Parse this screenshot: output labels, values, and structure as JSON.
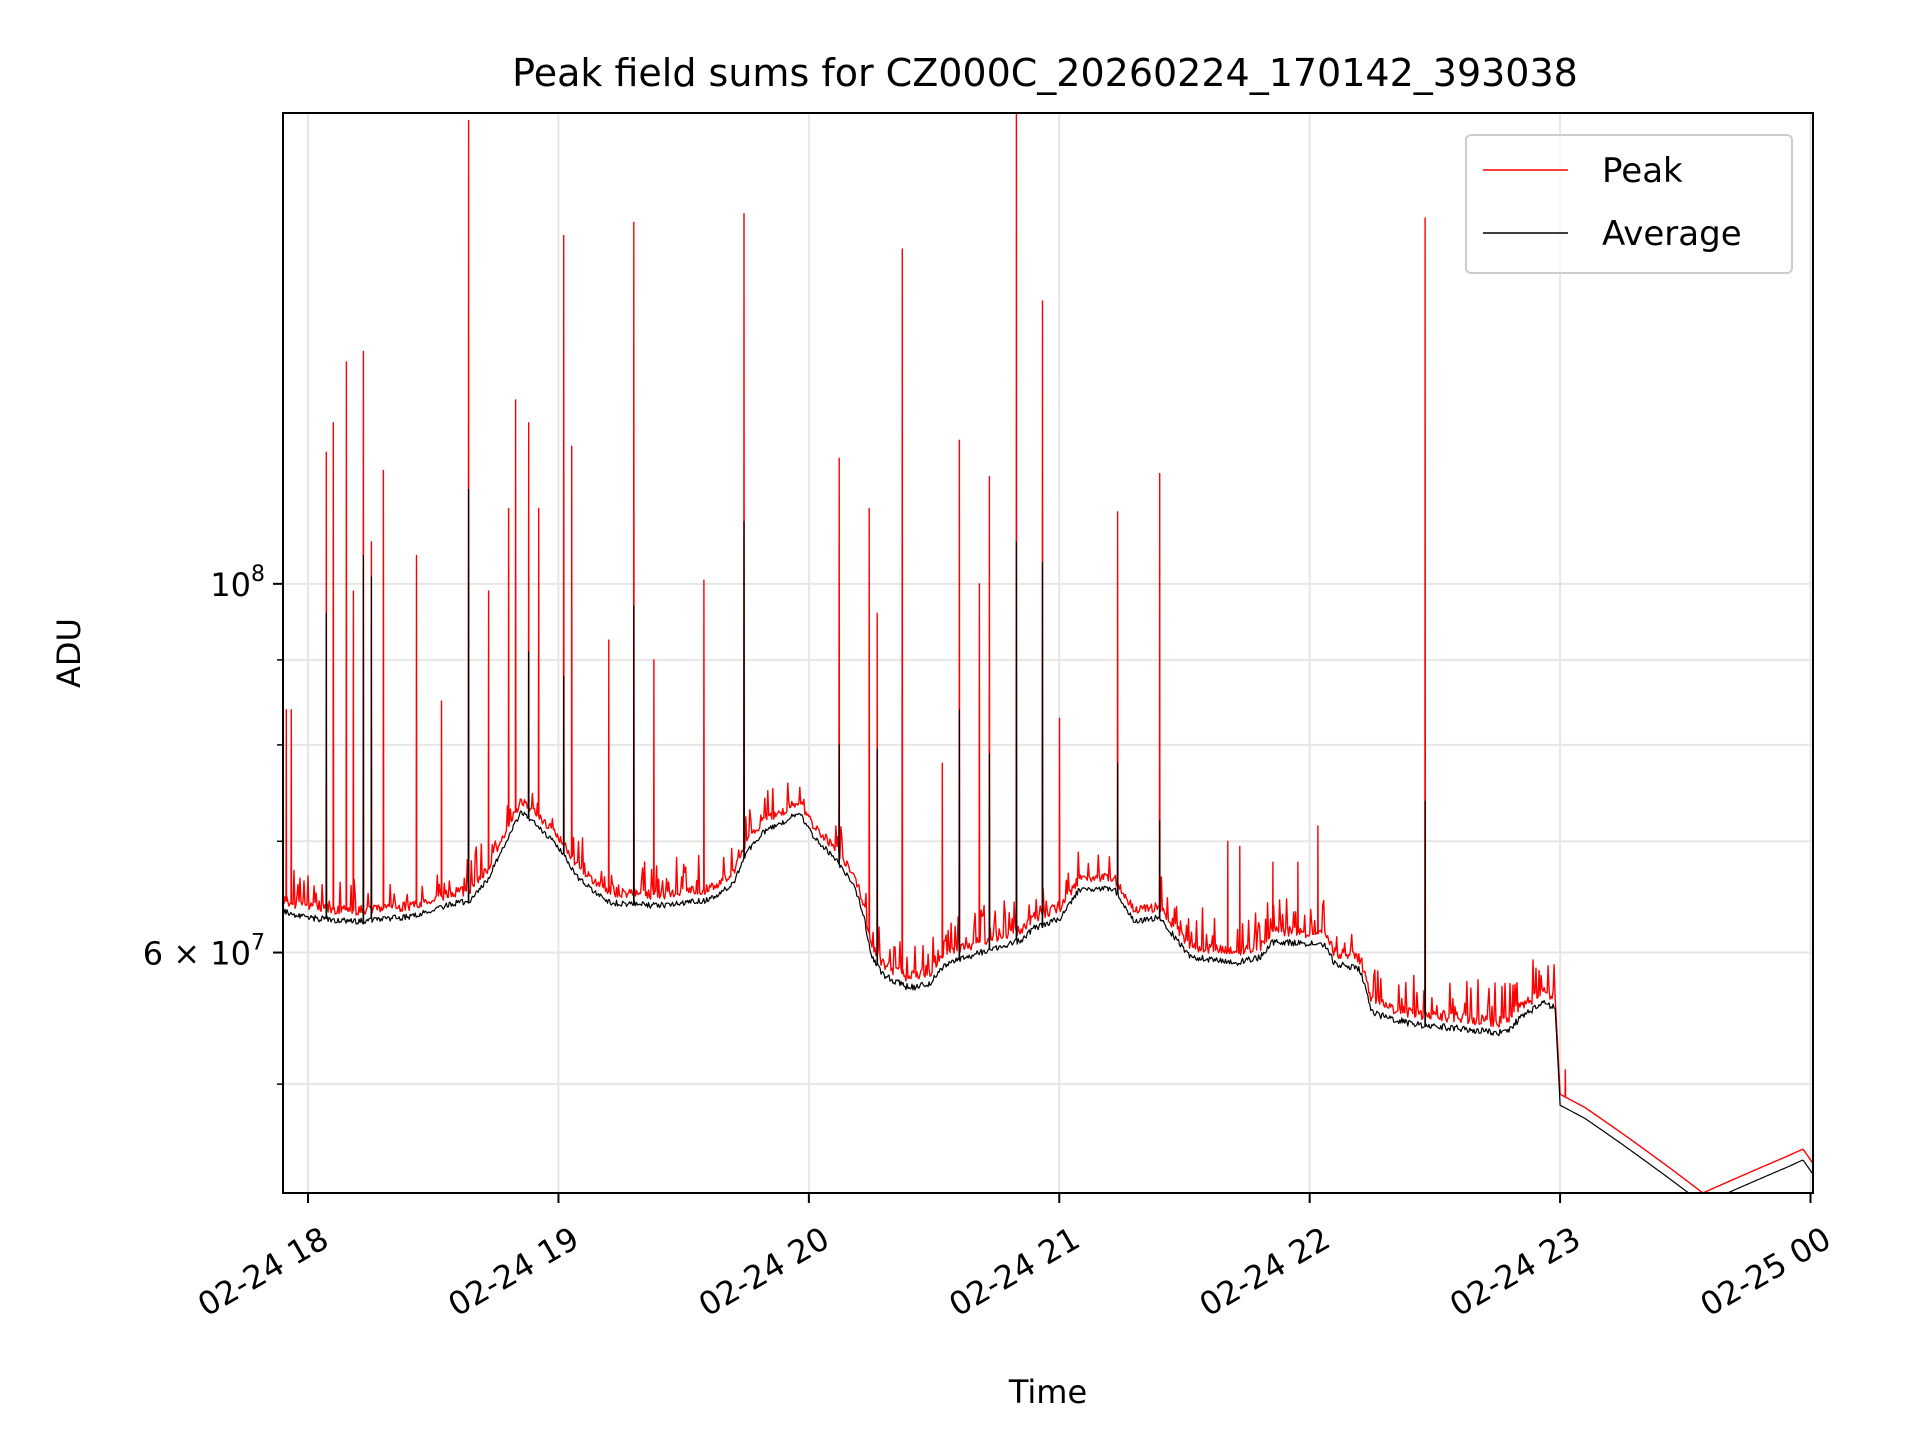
{
  "chart_data": {
    "type": "line",
    "title": "Peak field sums for CZ000C_20260224_170142_393038",
    "xlabel": "Time",
    "ylabel": "ADU",
    "yscale": "log",
    "xlim_hours": [
      17.9,
      24.01
    ],
    "ylim": [
      43000000,
      192000000
    ],
    "grid": true,
    "legend_position": "top-right",
    "x_ticks": [
      {
        "hour": 18,
        "label": "02-24 18"
      },
      {
        "hour": 19,
        "label": "02-24 19"
      },
      {
        "hour": 20,
        "label": "02-24 20"
      },
      {
        "hour": 21,
        "label": "02-24 21"
      },
      {
        "hour": 22,
        "label": "02-24 22"
      },
      {
        "hour": 23,
        "label": "02-24 23"
      },
      {
        "hour": 24,
        "label": "02-25 00"
      }
    ],
    "y_ticks": [
      {
        "value": 100000000,
        "base": "10",
        "exp": "8",
        "mant": ""
      },
      {
        "value": 60000000,
        "base": "10",
        "exp": "7",
        "mant": "6 × "
      }
    ],
    "y_minor_ticks": [
      50000000,
      70000000,
      80000000,
      90000000
    ],
    "series": [
      {
        "name": "Peak",
        "color": "#ff0000",
        "baseline": [
          [
            17.9,
            64.5
          ],
          [
            18.0,
            63.9
          ],
          [
            18.2,
            63.6
          ],
          [
            18.4,
            64.0
          ],
          [
            18.55,
            65.0
          ],
          [
            18.65,
            65.5
          ],
          [
            18.72,
            67.5
          ],
          [
            18.8,
            71.5
          ],
          [
            18.85,
            74.0
          ],
          [
            18.9,
            73.0
          ],
          [
            19.0,
            70.5
          ],
          [
            19.08,
            67.5
          ],
          [
            19.2,
            65.3
          ],
          [
            19.4,
            65.0
          ],
          [
            19.6,
            65.5
          ],
          [
            19.7,
            67.0
          ],
          [
            19.75,
            70.0
          ],
          [
            19.82,
            72.0
          ],
          [
            19.9,
            73.0
          ],
          [
            19.96,
            74.0
          ],
          [
            20.02,
            71.5
          ],
          [
            20.1,
            69.5
          ],
          [
            20.18,
            67.0
          ],
          [
            20.22,
            64.0
          ],
          [
            20.25,
            60.5
          ],
          [
            20.3,
            59.0
          ],
          [
            20.4,
            58.0
          ],
          [
            20.48,
            58.3
          ],
          [
            20.55,
            60.0
          ],
          [
            20.7,
            61.0
          ],
          [
            20.85,
            62.0
          ],
          [
            20.9,
            63.0
          ],
          [
            21.0,
            63.8
          ],
          [
            21.08,
            66.5
          ],
          [
            21.22,
            66.5
          ],
          [
            21.3,
            63.5
          ],
          [
            21.4,
            64.0
          ],
          [
            21.45,
            62.5
          ],
          [
            21.52,
            60.6
          ],
          [
            21.7,
            60.0
          ],
          [
            21.8,
            60.5
          ],
          [
            21.85,
            61.8
          ],
          [
            22.0,
            61.7
          ],
          [
            22.06,
            61.5
          ],
          [
            22.1,
            60.0
          ],
          [
            22.2,
            59.5
          ],
          [
            22.25,
            56.0
          ],
          [
            22.4,
            55.2
          ],
          [
            22.6,
            54.8
          ],
          [
            22.78,
            54.5
          ],
          [
            22.85,
            55.8
          ],
          [
            22.93,
            56.8
          ],
          [
            22.98,
            56.4
          ],
          [
            23.0,
            49.3
          ],
          [
            23.1,
            48.4
          ],
          [
            23.57,
            43.0
          ],
          [
            23.9,
            45.2
          ],
          [
            23.97,
            45.7
          ],
          [
            24.01,
            44.8
          ]
        ],
        "spikes": [
          [
            17.91,
            84.0
          ],
          [
            17.93,
            84.0
          ],
          [
            18.07,
            120.0
          ],
          [
            18.1,
            125.0
          ],
          [
            18.15,
            136.0
          ],
          [
            18.18,
            99.0
          ],
          [
            18.22,
            138.0
          ],
          [
            18.25,
            106.0
          ],
          [
            18.3,
            117.0
          ],
          [
            18.43,
            104.0
          ],
          [
            18.53,
            85.0
          ],
          [
            18.64,
            190.0
          ],
          [
            18.72,
            99.0
          ],
          [
            18.8,
            111.0
          ],
          [
            18.83,
            129.0
          ],
          [
            18.88,
            125.0
          ],
          [
            18.92,
            111.0
          ],
          [
            19.02,
            162.0
          ],
          [
            19.05,
            121.0
          ],
          [
            19.2,
            92.5
          ],
          [
            19.3,
            165.0
          ],
          [
            19.38,
            90.0
          ],
          [
            19.58,
            100.5
          ],
          [
            19.74,
            167.0
          ],
          [
            20.12,
            119.0
          ],
          [
            20.24,
            111.0
          ],
          [
            20.27,
            96.0
          ],
          [
            20.37,
            159.0
          ],
          [
            20.53,
            78.0
          ],
          [
            20.6,
            122.0
          ],
          [
            20.68,
            100.0
          ],
          [
            20.72,
            116.0
          ],
          [
            20.83,
            192.0
          ],
          [
            20.93,
            148.0
          ],
          [
            21.0,
            83.0
          ],
          [
            21.23,
            110.5
          ],
          [
            21.4,
            116.5
          ],
          [
            21.67,
            70.0
          ],
          [
            21.72,
            69.5
          ],
          [
            21.85,
            68.0
          ],
          [
            21.95,
            68.0
          ],
          [
            22.03,
            71.5
          ],
          [
            22.46,
            166.0
          ],
          [
            23.02,
            51.0
          ]
        ]
      },
      {
        "name": "Average",
        "color": "#000000",
        "baseline_offset_factor": 0.985,
        "spike_tops": [
          [
            18.07,
            96.0
          ],
          [
            18.22,
            104.0
          ],
          [
            18.25,
            101.0
          ],
          [
            18.64,
            114.0
          ],
          [
            18.88,
            91.0
          ],
          [
            19.02,
            88.0
          ],
          [
            19.3,
            97.0
          ],
          [
            19.74,
            109.0
          ],
          [
            20.12,
            80.0
          ],
          [
            20.27,
            79.5
          ],
          [
            20.6,
            84.0
          ],
          [
            20.72,
            79.0
          ],
          [
            20.83,
            106.0
          ],
          [
            20.93,
            103.0
          ],
          [
            21.23,
            78.0
          ],
          [
            21.4,
            72.0
          ],
          [
            22.46,
            74.0
          ]
        ]
      }
    ]
  }
}
